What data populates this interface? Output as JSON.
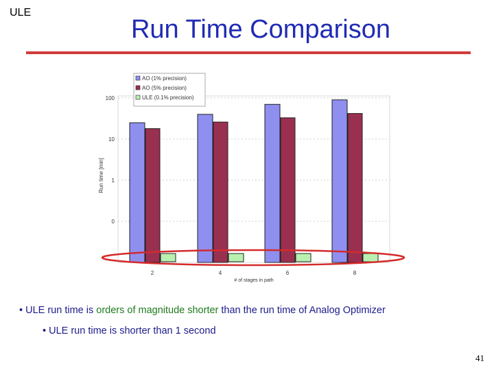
{
  "slide": {
    "corner_label": "ULE",
    "title": "Run Time Comparison",
    "bullet_prefix": "• ULE run time is ",
    "bullet_highlight": "orders of magnitude shorter",
    "bullet_suffix": " than the run time of Analog Optimizer",
    "sub_bullet": "•   ULE run time is shorter than 1 second",
    "page_number": "41"
  },
  "colors": {
    "title": "#1f2bb3",
    "rule": "#d23a3a",
    "ellipse": "#d42a2a",
    "ao1": "#8f8ff0",
    "ao5": "#9a3050",
    "ule": "#b8f0b0"
  },
  "chart_data": {
    "type": "bar",
    "ylabel": "Run time [min]",
    "xlabel": "# of stages in path",
    "yscale": "log",
    "yticks": [
      "100",
      "10",
      "1",
      "0"
    ],
    "categories": [
      "2",
      "4",
      "6",
      "8"
    ],
    "series": [
      {
        "name": "AO (1% precision)",
        "values": [
          25,
          40,
          70,
          90
        ]
      },
      {
        "name": "AO (5% precision)",
        "values": [
          18,
          26,
          33,
          42
        ]
      },
      {
        "name": "ULE (0.1% precision)",
        "values": [
          0.004,
          0.004,
          0.004,
          0.004
        ]
      }
    ],
    "legend_position": "top-left",
    "highlight": "red ellipse around ULE bars"
  }
}
